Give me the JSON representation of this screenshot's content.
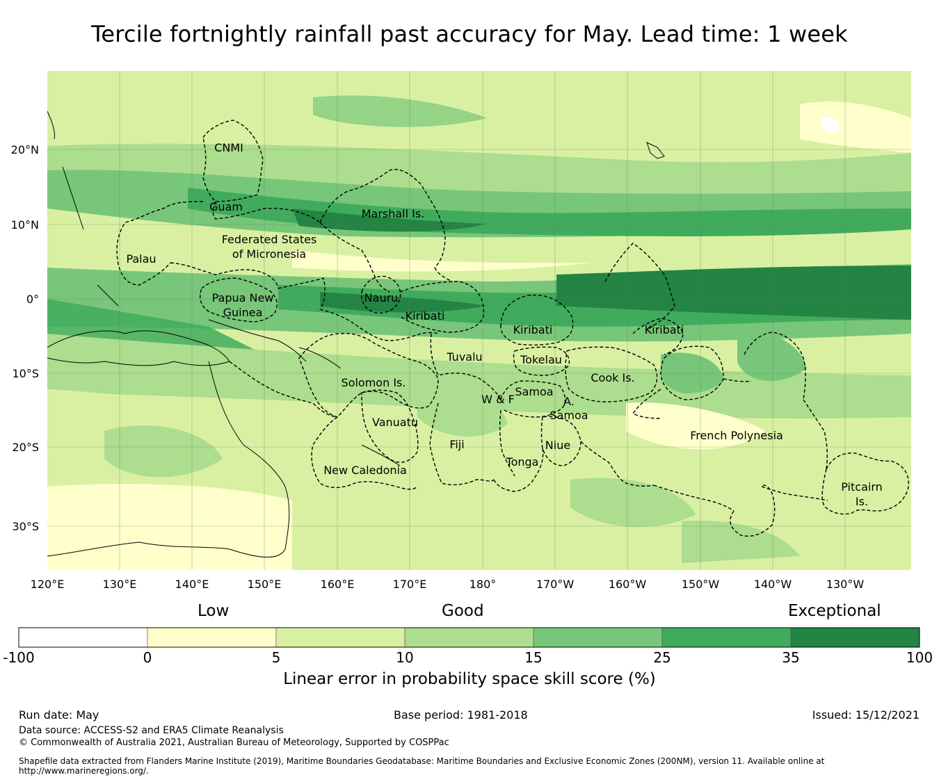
{
  "title": "Tercile fortnightly rainfall past accuracy for May. Lead time: 1 week",
  "map": {
    "lon_labels": [
      "120°E",
      "130°E",
      "140°E",
      "150°E",
      "160°E",
      "170°E",
      "180°",
      "170°W",
      "160°W",
      "150°W",
      "140°W",
      "130°W"
    ],
    "lat_labels": [
      "20°N",
      "10°N",
      "0°",
      "10°S",
      "20°S",
      "30°S"
    ],
    "regions": [
      {
        "id": "cnmi",
        "lines": [
          "CNMI"
        ]
      },
      {
        "id": "guam",
        "lines": [
          "Guam"
        ]
      },
      {
        "id": "marshall",
        "lines": [
          "Marshall Is."
        ]
      },
      {
        "id": "fsm",
        "lines": [
          "Federated States",
          "of Micronesia"
        ]
      },
      {
        "id": "palau",
        "lines": [
          "Palau"
        ]
      },
      {
        "id": "png",
        "lines": [
          "Papua New",
          "Guinea"
        ]
      },
      {
        "id": "nauru",
        "lines": [
          "Nauru"
        ]
      },
      {
        "id": "kiribati-w",
        "lines": [
          "Kiribati"
        ]
      },
      {
        "id": "kiribati-c",
        "lines": [
          "Kiribati"
        ]
      },
      {
        "id": "kiribati-e",
        "lines": [
          "Kiribati"
        ]
      },
      {
        "id": "tuvalu",
        "lines": [
          "Tuvalu"
        ]
      },
      {
        "id": "tokelau",
        "lines": [
          "Tokelau"
        ]
      },
      {
        "id": "solomon",
        "lines": [
          "Solomon Is."
        ]
      },
      {
        "id": "samoa",
        "lines": [
          "Samoa"
        ]
      },
      {
        "id": "wf",
        "lines": [
          "W & F"
        ]
      },
      {
        "id": "asamoa",
        "lines": [
          "A.",
          "Samoa"
        ]
      },
      {
        "id": "cook",
        "lines": [
          "Cook Is."
        ]
      },
      {
        "id": "vanuatu",
        "lines": [
          "Vanuatu"
        ]
      },
      {
        "id": "fiji",
        "lines": [
          "Fiji"
        ]
      },
      {
        "id": "niue",
        "lines": [
          "Niue"
        ]
      },
      {
        "id": "tonga",
        "lines": [
          "Tonga"
        ]
      },
      {
        "id": "newcal",
        "lines": [
          "New Caledonia"
        ]
      },
      {
        "id": "frpoly",
        "lines": [
          "French Polynesia"
        ]
      },
      {
        "id": "pitcairn",
        "lines": [
          "Pitcairn",
          "Is."
        ]
      }
    ]
  },
  "colorbar": {
    "categories": [
      "Low",
      "Good",
      "Exceptional"
    ],
    "ticks": [
      "-100",
      "0",
      "5",
      "10",
      "15",
      "25",
      "35",
      "100"
    ],
    "colors": [
      "#ffffff",
      "#ffffcc",
      "#d9f0a3",
      "#addd8e",
      "#78c679",
      "#41ab5d",
      "#238443"
    ],
    "title": "Linear error in probability space skill score (%)"
  },
  "footer": {
    "run_date": "Run date: May",
    "base_period": "Base period: 1981-2018",
    "issued": "Issued: 15/12/2021",
    "data_source": "Data source: ACCESS-S2 and ERA5 Climate Reanalysis",
    "copyright": "© Commonwealth of Australia 2021, Australian Bureau of Meteorology, Supported by COSPPac",
    "shapefile_1": "Shapefile data extracted from Flanders Marine Institute (2019), Maritime Boundaries Geodatabase: Maritime Boundaries and Exclusive Economic Zones (200NM), version 11. Available online at",
    "shapefile_2": "http://www.marineregions.org/."
  }
}
